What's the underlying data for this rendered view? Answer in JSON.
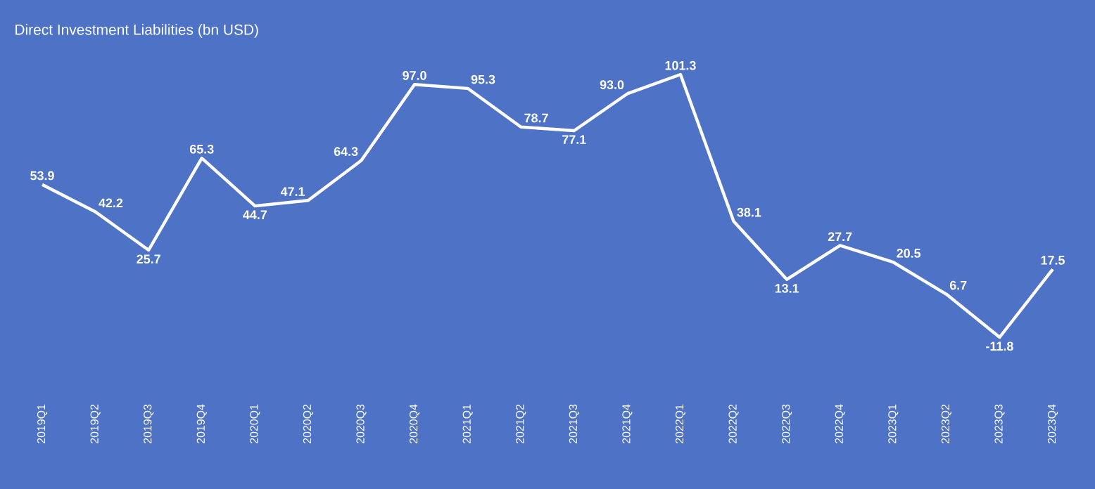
{
  "chart_data": {
    "type": "line",
    "title": "Direct Investment Liabilities (bn USD)",
    "categories": [
      "2019Q1",
      "2019Q2",
      "2019Q3",
      "2019Q4",
      "2020Q1",
      "2020Q2",
      "2020Q3",
      "2020Q4",
      "2021Q1",
      "2021Q2",
      "2021Q3",
      "2021Q4",
      "2022Q1",
      "2022Q2",
      "2022Q3",
      "2022Q4",
      "2023Q1",
      "2023Q2",
      "2023Q3",
      "2023Q4"
    ],
    "series": [
      {
        "color": "#ffffff",
        "values": [
          53.9,
          42.2,
          25.7,
          65.3,
          44.7,
          47.1,
          64.3,
          97.0,
          95.3,
          78.7,
          77.1,
          93.0,
          101.3,
          38.1,
          13.1,
          27.7,
          20.5,
          6.7,
          -11.8,
          17.5
        ],
        "value_labels": [
          "53.9",
          "42.2",
          "25.7",
          "65.3",
          "44.7",
          "47.1",
          "64.3",
          "97.0",
          "95.3",
          "78.7",
          "77.1",
          "93.0",
          "101.3",
          "38.1",
          "13.1",
          "27.7",
          "20.5",
          "6.7",
          "-11.8",
          "17.5"
        ]
      }
    ],
    "line_style": "solid"
  }
}
